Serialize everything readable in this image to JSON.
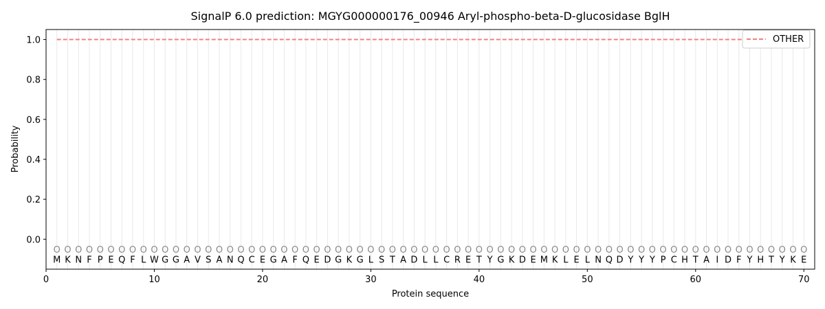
{
  "chart_data": {
    "type": "line",
    "title": "SignalP 6.0 prediction: MGYG000000176_00946 Aryl-phospho-beta-D-glucosidase BglH",
    "xlabel": "Protein sequence",
    "ylabel": "Probability",
    "xlim": [
      0,
      71
    ],
    "ylim": [
      -0.15,
      1.05
    ],
    "xticks": [
      0,
      10,
      20,
      30,
      40,
      50,
      60,
      70
    ],
    "yticks": [
      0.0,
      0.2,
      0.4,
      0.6,
      0.8,
      1.0
    ],
    "ytick_labels": [
      "0.0",
      "0.2",
      "0.4",
      "0.6",
      "0.8",
      "1.0"
    ],
    "sequence": [
      "M",
      "K",
      "N",
      "F",
      "P",
      "E",
      "Q",
      "F",
      "L",
      "W",
      "G",
      "G",
      "A",
      "V",
      "S",
      "A",
      "N",
      "Q",
      "C",
      "E",
      "G",
      "A",
      "F",
      "Q",
      "E",
      "D",
      "G",
      "K",
      "G",
      "L",
      "S",
      "T",
      "A",
      "D",
      "L",
      "L",
      "C",
      "R",
      "E",
      "T",
      "Y",
      "G",
      "K",
      "D",
      "E",
      "M",
      "K",
      "L",
      "E",
      "L",
      "N",
      "Q",
      "D",
      "Y",
      "Y",
      "Y",
      "P",
      "C",
      "H",
      "T",
      "A",
      "I",
      "D",
      "F",
      "Y",
      "H",
      "T",
      "Y",
      "K",
      "E"
    ],
    "predicted_label": "O",
    "series": [
      {
        "name": "OTHER",
        "color": "#f08080",
        "style": "dashed",
        "x_range": [
          1,
          70
        ],
        "value": 1.0
      }
    ],
    "legend_position": "top-right",
    "grid": "vertical lines at each residue"
  }
}
